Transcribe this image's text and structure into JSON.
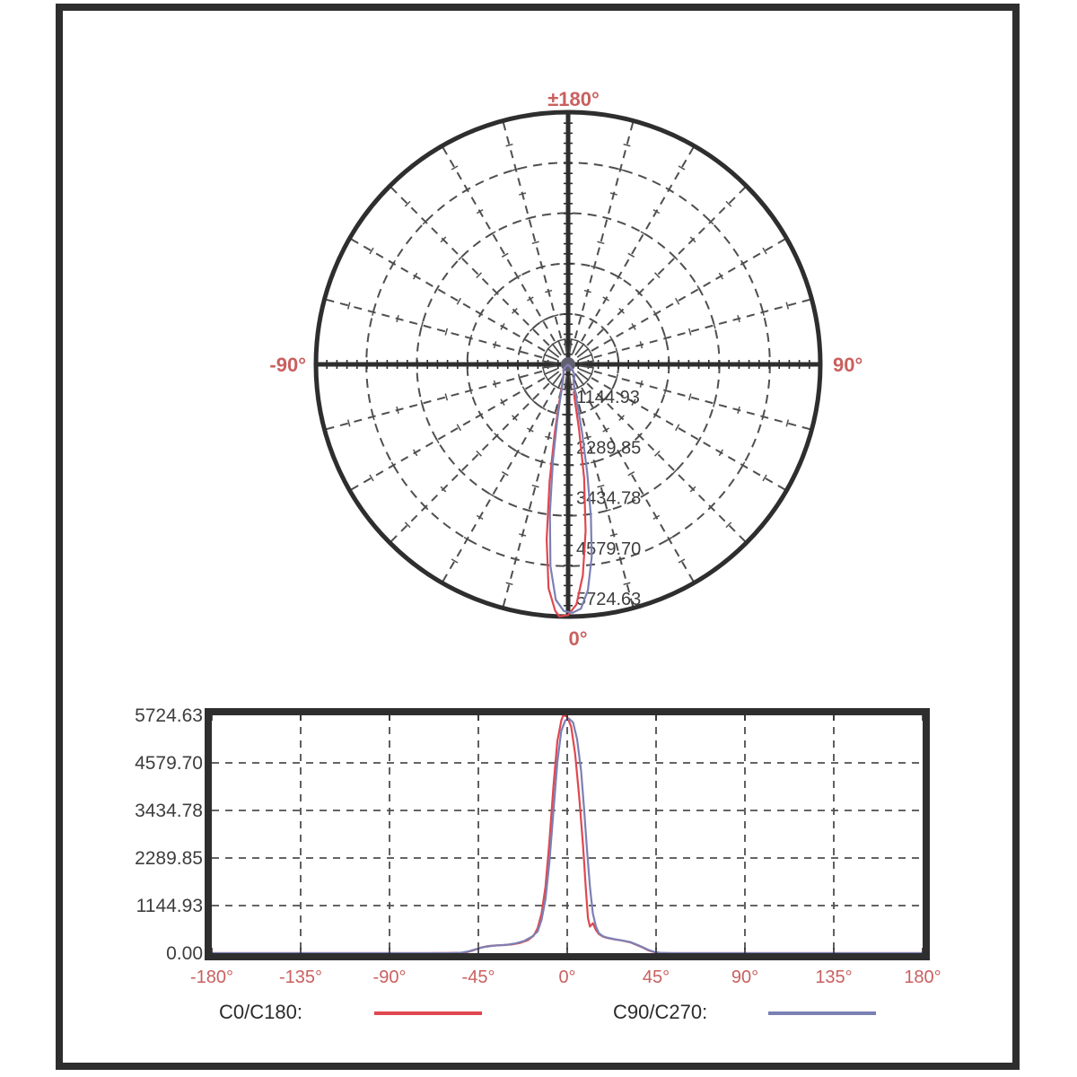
{
  "page": {
    "background": "#ffffff",
    "frame_color": "#2e2e2e"
  },
  "colors": {
    "frame": "#2e2e2e",
    "grid": "#4f4f4f",
    "text_dark": "#3d3d3d",
    "label_red": "#c9605f",
    "center_dot": "#606070"
  },
  "legend": {
    "c0_label": "C0/C180:",
    "c90_label": "C90/C270:"
  },
  "chart_data": {
    "type": "line",
    "description": "Luminous intensity distribution: polar diagram (top) and cartesian plot (bottom) of candela vs gamma angle",
    "series": [
      {
        "name": "C0/C180",
        "color": "#e0474f",
        "points": [
          [
            -180,
            0
          ],
          [
            -150,
            0
          ],
          [
            -120,
            0
          ],
          [
            -90,
            0
          ],
          [
            -70,
            0
          ],
          [
            -60,
            5
          ],
          [
            -52,
            10
          ],
          [
            -48,
            60
          ],
          [
            -44,
            130
          ],
          [
            -40,
            170
          ],
          [
            -36,
            185
          ],
          [
            -32,
            195
          ],
          [
            -28,
            210
          ],
          [
            -24,
            245
          ],
          [
            -20,
            310
          ],
          [
            -17,
            420
          ],
          [
            -15,
            600
          ],
          [
            -13,
            950
          ],
          [
            -11,
            1600
          ],
          [
            -9,
            2700
          ],
          [
            -7,
            4000
          ],
          [
            -5,
            5100
          ],
          [
            -3,
            5600
          ],
          [
            -2,
            5724.63
          ],
          [
            0,
            5690
          ],
          [
            2,
            5450
          ],
          [
            4,
            4800
          ],
          [
            6,
            3800
          ],
          [
            8,
            2600
          ],
          [
            9.5,
            1500
          ],
          [
            10.5,
            850
          ],
          [
            11.5,
            640
          ],
          [
            13,
            720
          ],
          [
            14.5,
            560
          ],
          [
            16,
            460
          ],
          [
            18,
            400
          ],
          [
            20,
            370
          ],
          [
            24,
            330
          ],
          [
            28,
            300
          ],
          [
            32,
            260
          ],
          [
            35,
            200
          ],
          [
            38,
            140
          ],
          [
            41,
            70
          ],
          [
            44,
            25
          ],
          [
            46,
            5
          ],
          [
            50,
            0
          ],
          [
            70,
            0
          ],
          [
            90,
            0
          ],
          [
            120,
            0
          ],
          [
            150,
            0
          ],
          [
            180,
            0
          ]
        ]
      },
      {
        "name": "C90/C270",
        "color": "#7b80b4",
        "points": [
          [
            -180,
            0
          ],
          [
            -150,
            0
          ],
          [
            -120,
            0
          ],
          [
            -90,
            0
          ],
          [
            -70,
            0
          ],
          [
            -60,
            0
          ],
          [
            -54,
            8
          ],
          [
            -50,
            40
          ],
          [
            -46,
            100
          ],
          [
            -42,
            150
          ],
          [
            -38,
            175
          ],
          [
            -34,
            190
          ],
          [
            -30,
            205
          ],
          [
            -26,
            235
          ],
          [
            -22,
            290
          ],
          [
            -18,
            390
          ],
          [
            -15,
            520
          ],
          [
            -13,
            800
          ],
          [
            -11,
            1300
          ],
          [
            -9,
            2200
          ],
          [
            -7,
            3400
          ],
          [
            -5,
            4600
          ],
          [
            -3,
            5350
          ],
          [
            -1,
            5600
          ],
          [
            1,
            5640
          ],
          [
            3,
            5550
          ],
          [
            5,
            5150
          ],
          [
            7,
            4400
          ],
          [
            8.5,
            3500
          ],
          [
            10,
            2500
          ],
          [
            11.5,
            1600
          ],
          [
            13,
            950
          ],
          [
            14.5,
            650
          ],
          [
            16,
            480
          ],
          [
            18,
            410
          ],
          [
            20,
            375
          ],
          [
            24,
            335
          ],
          [
            28,
            305
          ],
          [
            32,
            265
          ],
          [
            35,
            210
          ],
          [
            38,
            150
          ],
          [
            41,
            80
          ],
          [
            44,
            30
          ],
          [
            47,
            8
          ],
          [
            52,
            0
          ],
          [
            70,
            0
          ],
          [
            90,
            0
          ],
          [
            120,
            0
          ],
          [
            150,
            0
          ],
          [
            180,
            0
          ]
        ]
      }
    ],
    "polar": {
      "type": "line-polar",
      "rmax": 5724.63,
      "spoke_step_deg": 15,
      "radial_ticks": [
        "1144.93",
        "2289.85",
        "3434.78",
        "4579.70",
        "5724.63"
      ],
      "radial_tick_values": [
        1144.93,
        2289.85,
        3434.78,
        4579.7,
        5724.63
      ],
      "angle_labels": [
        {
          "angle": 180,
          "label": "±180°"
        },
        {
          "angle": -90,
          "label": "-90°"
        },
        {
          "angle": 90,
          "label": "90°"
        },
        {
          "angle": 0,
          "label": "0°"
        }
      ],
      "zero_direction": "down",
      "grid": true
    },
    "cartesian": {
      "type": "line",
      "xlabel": "",
      "ylabel": "",
      "xlim": [
        -180,
        180
      ],
      "ylim": [
        0,
        5724.63
      ],
      "x_ticks": [
        "-180°",
        "-135°",
        "-90°",
        "-45°",
        "0°",
        "45°",
        "90°",
        "135°",
        "180°"
      ],
      "x_tick_values": [
        -180,
        -135,
        -90,
        -45,
        0,
        45,
        90,
        135,
        180
      ],
      "y_ticks": [
        "5724.63",
        "4579.70",
        "3434.78",
        "2289.85",
        "1144.93",
        "0.00"
      ],
      "y_tick_values": [
        5724.63,
        4579.7,
        3434.78,
        2289.85,
        1144.93,
        0
      ],
      "grid": true,
      "legend_position": "bottom"
    }
  }
}
